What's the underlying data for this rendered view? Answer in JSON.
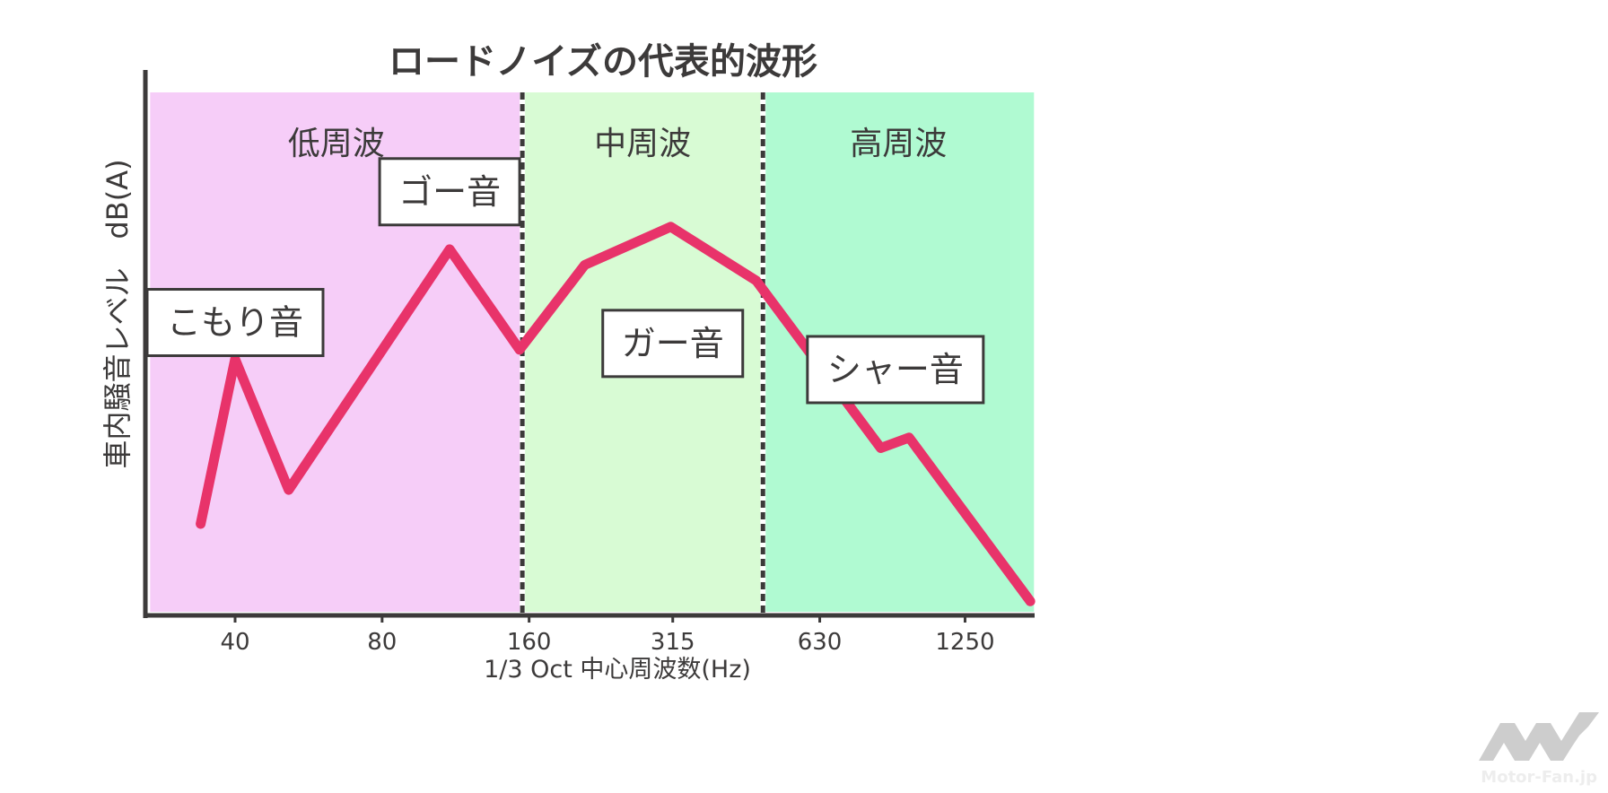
{
  "chart_data": {
    "type": "line",
    "title": "ロードノイズの代表的波形",
    "xlabel": "1/3 Oct 中心周波数(Hz)",
    "ylabel": "車内騒音レベル　dB(A)",
    "xscale": "log",
    "xlim": [
      26.2,
      1750
    ],
    "ylim": [
      0,
      100
    ],
    "x_ticks": [
      {
        "value": 40,
        "label": "40"
      },
      {
        "value": 80,
        "label": "80"
      },
      {
        "value": 160,
        "label": "160"
      },
      {
        "value": 315,
        "label": "315"
      },
      {
        "value": 630,
        "label": "630"
      },
      {
        "value": 1250,
        "label": "1250"
      }
    ],
    "regions": [
      {
        "name": "低周波",
        "from": 26.8,
        "to": 155,
        "color": "#f6cdf8"
      },
      {
        "name": "中周波",
        "from": 155,
        "to": 482,
        "color": "#d8fbd4"
      },
      {
        "name": "高周波",
        "from": 482,
        "to": 1730,
        "color": "#b0fad2"
      }
    ],
    "boundaries": [
      155,
      482
    ],
    "series": [
      {
        "name": "ロードノイズ",
        "color": "#e8336a",
        "x": [
          34,
          40,
          51.5,
          110,
          153,
          208,
          312,
          467,
          840,
          960,
          1700
        ],
        "y": [
          17.5,
          49,
          24,
          70,
          50.8,
          67,
          74.3,
          64,
          32,
          34,
          2.7
        ]
      }
    ],
    "annotations": [
      {
        "text": "こもり音",
        "x": 40,
        "y": 56
      },
      {
        "text": "ゴー音",
        "x": 110,
        "y": 81
      },
      {
        "text": "ガー音",
        "x": 315,
        "y": 52
      },
      {
        "text": "シャー音",
        "x": 900,
        "y": 47
      }
    ],
    "grid": false
  },
  "watermark": "Motor-Fan.jp"
}
